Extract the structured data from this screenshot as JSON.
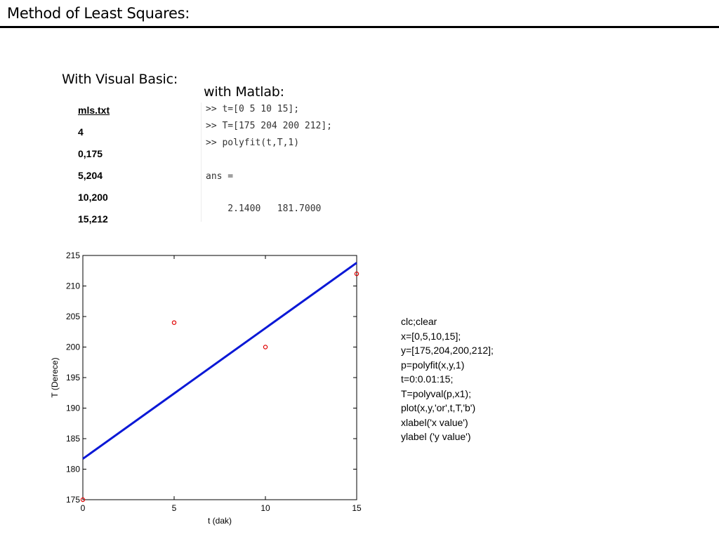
{
  "slide": {
    "title": "Method of Least Squares:",
    "vb_heading": "With Visual Basic:",
    "matlab_heading": "with Matlab:"
  },
  "file_listing": [
    "mls.txt",
    "4",
    "0,175",
    "5,204",
    "10,200",
    "15,212"
  ],
  "matlab_console": [
    ">> t=[0 5 10 15];",
    ">> T=[175 204 200 212];",
    ">> polyfit(t,T,1)",
    "ans =",
    "    2.1400   181.7000"
  ],
  "code": [
    "clc;clear",
    "x=[0,5,10,15];",
    "y=[175,204,200,212];",
    "p=polyfit(x,y,1)",
    "t=0:0.01:15;",
    "T=polyval(p,x1);",
    "plot(x,y,'or',t,T,'b')",
    "xlabel('x value')",
    "ylabel ('y value')"
  ],
  "chart_data": {
    "type": "scatter",
    "xlabel": "t (dak)",
    "ylabel": "T (Derece)",
    "xlim": [
      0,
      15
    ],
    "ylim": [
      175,
      215
    ],
    "xticks": [
      0,
      5,
      10,
      15
    ],
    "yticks": [
      175,
      180,
      185,
      190,
      195,
      200,
      205,
      210,
      215
    ],
    "grid": false,
    "series": [
      {
        "type": "scatter",
        "marker": "circle",
        "color": "#e00000",
        "x": [
          0,
          5,
          10,
          15
        ],
        "y": [
          175,
          204,
          200,
          212
        ]
      },
      {
        "type": "line",
        "color": "#0a18d6",
        "x": [
          0,
          15
        ],
        "y": [
          181.7,
          213.8
        ]
      }
    ]
  }
}
